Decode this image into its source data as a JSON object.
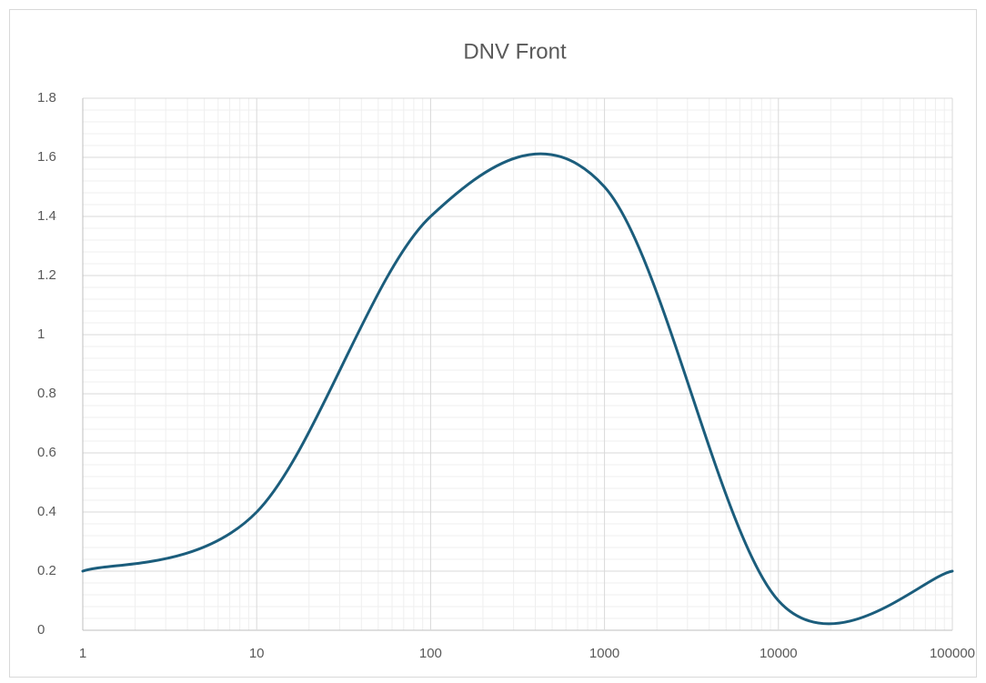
{
  "chart_data": {
    "type": "line",
    "title": "DNV Front",
    "x": [
      1,
      10,
      100,
      1000,
      10000,
      100000
    ],
    "values": [
      0.2,
      0.4,
      1.4,
      1.5,
      0.1,
      0.2
    ],
    "color": "#1b5d7c",
    "smooth": true,
    "xscale": "log",
    "xlim": [
      1,
      100000
    ],
    "xticks": [
      1,
      10,
      100,
      1000,
      10000,
      100000
    ],
    "ylim": [
      0,
      1.8
    ],
    "yticks": [
      0,
      0.2,
      0.4,
      0.6,
      0.8,
      1,
      1.2,
      1.4,
      1.6,
      1.8
    ],
    "grid": true,
    "minor_grid": true
  }
}
